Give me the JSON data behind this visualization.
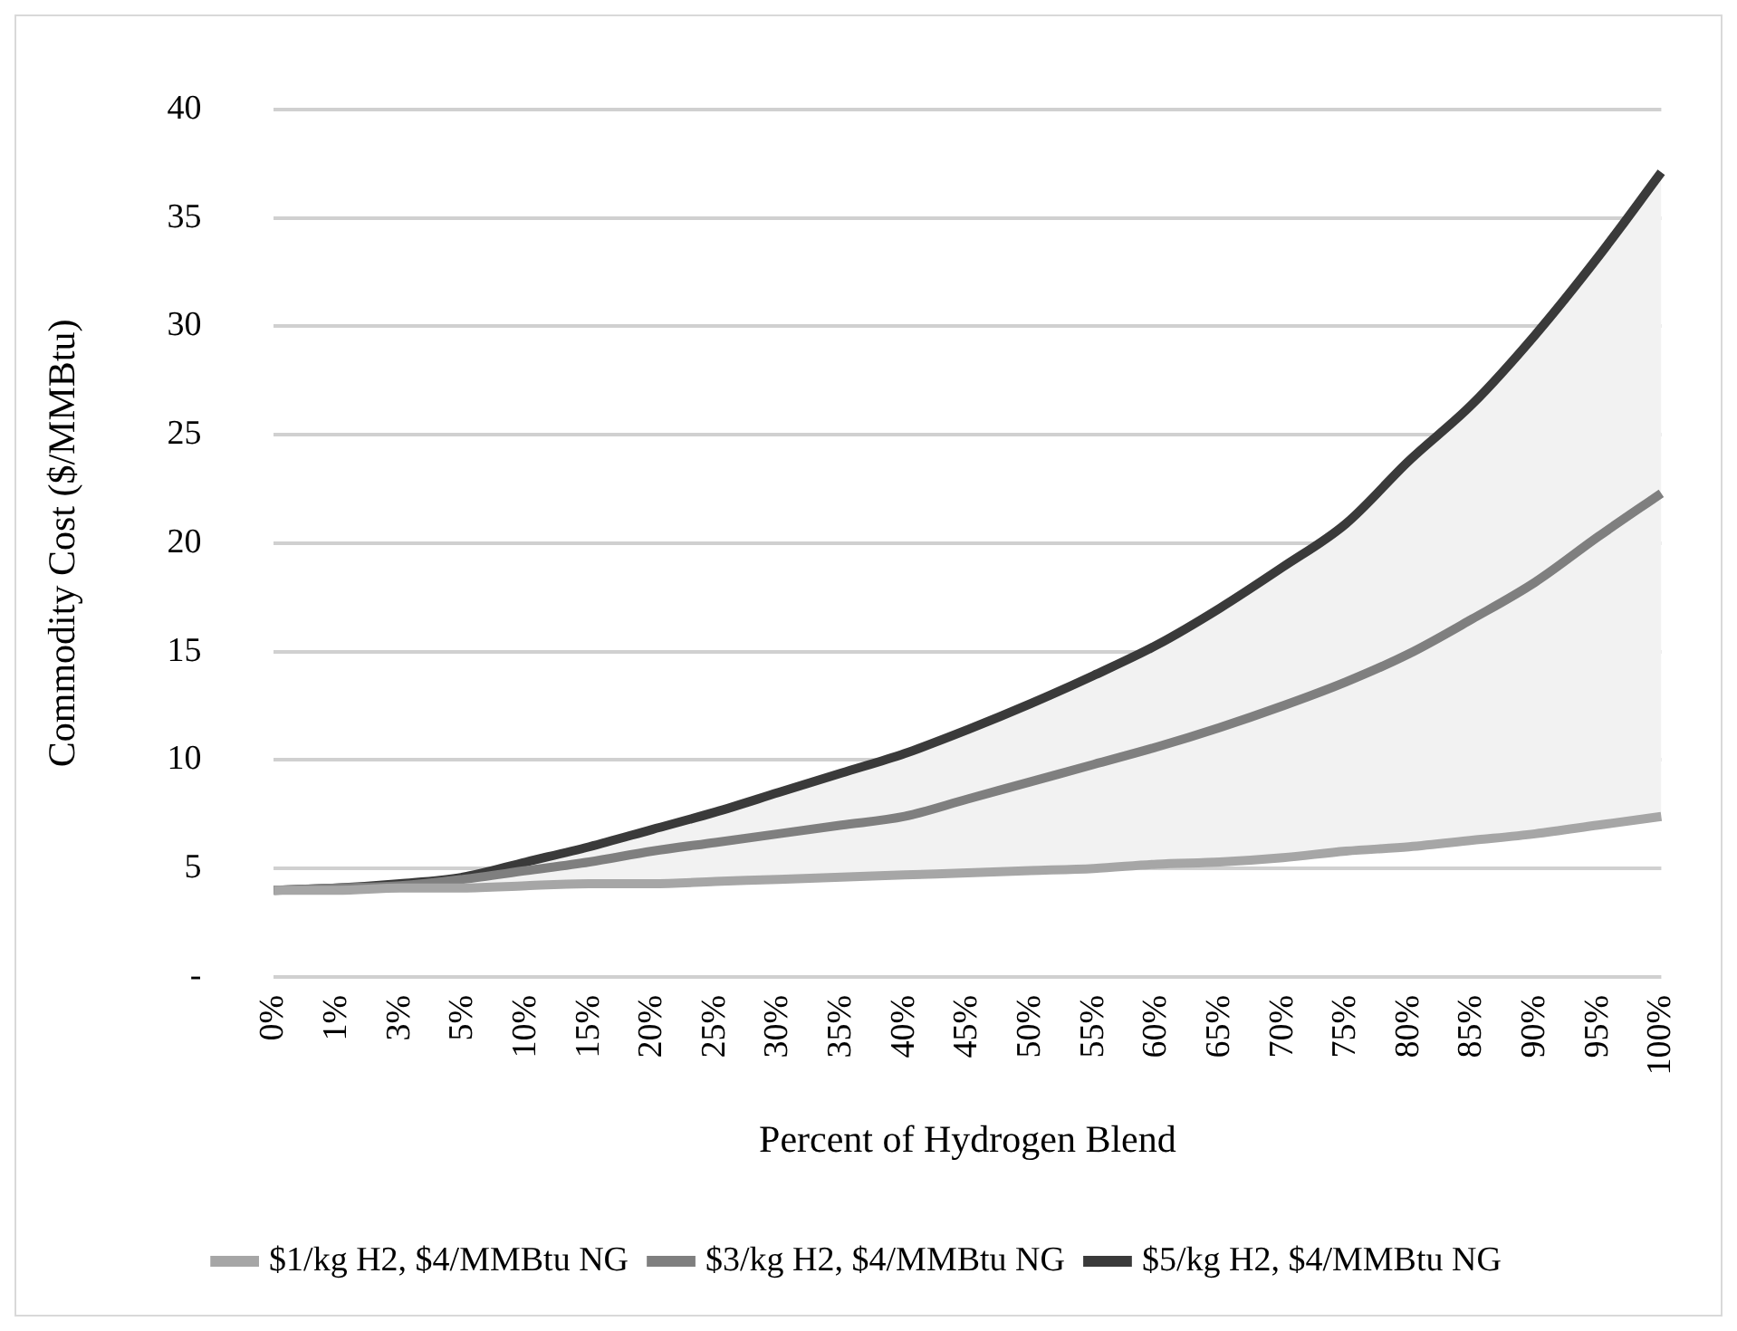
{
  "chart_data": {
    "type": "line",
    "xlabel": "Percent of Hydrogen Blend",
    "ylabel": "Commodity Cost ($/MMBtu)",
    "categories": [
      "0%",
      "1%",
      "3%",
      "5%",
      "10%",
      "15%",
      "20%",
      "25%",
      "30%",
      "35%",
      "40%",
      "45%",
      "50%",
      "55%",
      "60%",
      "65%",
      "70%",
      "75%",
      "80%",
      "85%",
      "90%",
      "95%",
      "100%"
    ],
    "series": [
      {
        "name": "$1/kg H2, $4/MMBtu NG",
        "color": "#a6a6a6",
        "values": [
          4.0,
          4.0,
          4.1,
          4.1,
          4.2,
          4.3,
          4.3,
          4.4,
          4.5,
          4.6,
          4.7,
          4.8,
          4.9,
          5.0,
          5.2,
          5.3,
          5.5,
          5.8,
          6.0,
          6.3,
          6.6,
          7.0,
          7.4
        ]
      },
      {
        "name": "$3/kg H2, $4/MMBtu NG",
        "color": "#7f7f7f",
        "values": [
          4.0,
          4.1,
          4.2,
          4.5,
          4.9,
          5.3,
          5.8,
          6.2,
          6.6,
          7.0,
          7.4,
          8.2,
          9.0,
          9.8,
          10.6,
          11.5,
          12.5,
          13.6,
          14.9,
          16.5,
          18.2,
          20.3,
          22.3
        ]
      },
      {
        "name": "$5/kg H2, $4/MMBtu NG",
        "color": "#3a3a3a",
        "values": [
          4.0,
          4.1,
          4.3,
          4.6,
          5.3,
          6.0,
          6.8,
          7.6,
          8.5,
          9.4,
          10.3,
          11.4,
          12.6,
          13.9,
          15.3,
          17.0,
          18.9,
          20.9,
          23.8,
          26.4,
          29.6,
          33.2,
          37.1
        ]
      }
    ],
    "ylim": [
      0,
      40
    ],
    "yticks": [
      {
        "value": 0,
        "label": "-"
      },
      5,
      10,
      15,
      20,
      25,
      30,
      35,
      40
    ],
    "grid": "y",
    "legend": "bottom",
    "marker": "none",
    "line_style": "solid"
  }
}
